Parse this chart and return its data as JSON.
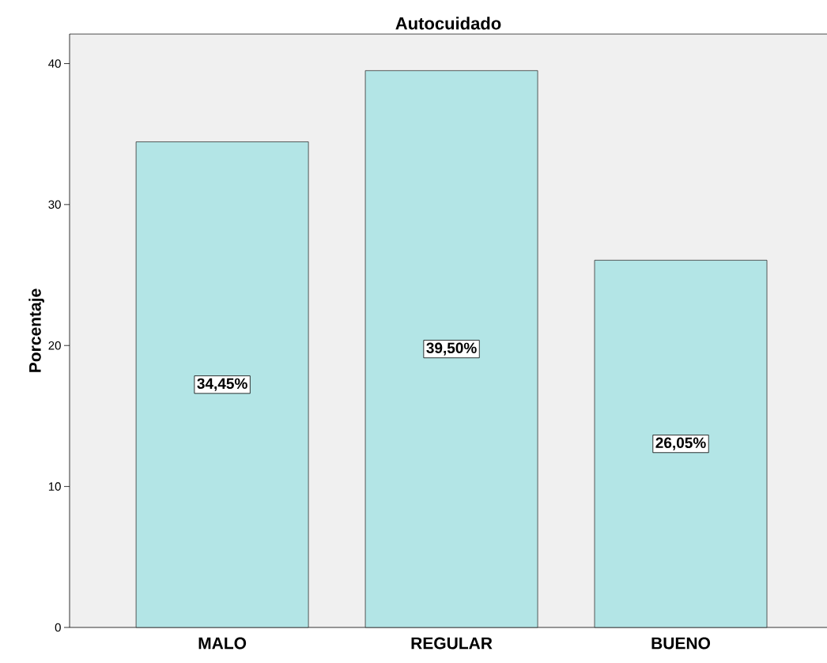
{
  "chart_data": {
    "type": "bar",
    "title": "Autocuidado",
    "ylabel": "Porcentaje",
    "categories": [
      "MALO",
      "REGULAR",
      "BUENO"
    ],
    "values": [
      34.45,
      39.5,
      26.05
    ],
    "value_labels": [
      "34,45%",
      "39,50%",
      "26,05%"
    ],
    "color": "#b3e5e6",
    "ylim": [
      0,
      42.1
    ],
    "yticks": [
      0,
      10,
      20,
      30,
      40
    ],
    "grid": false
  }
}
